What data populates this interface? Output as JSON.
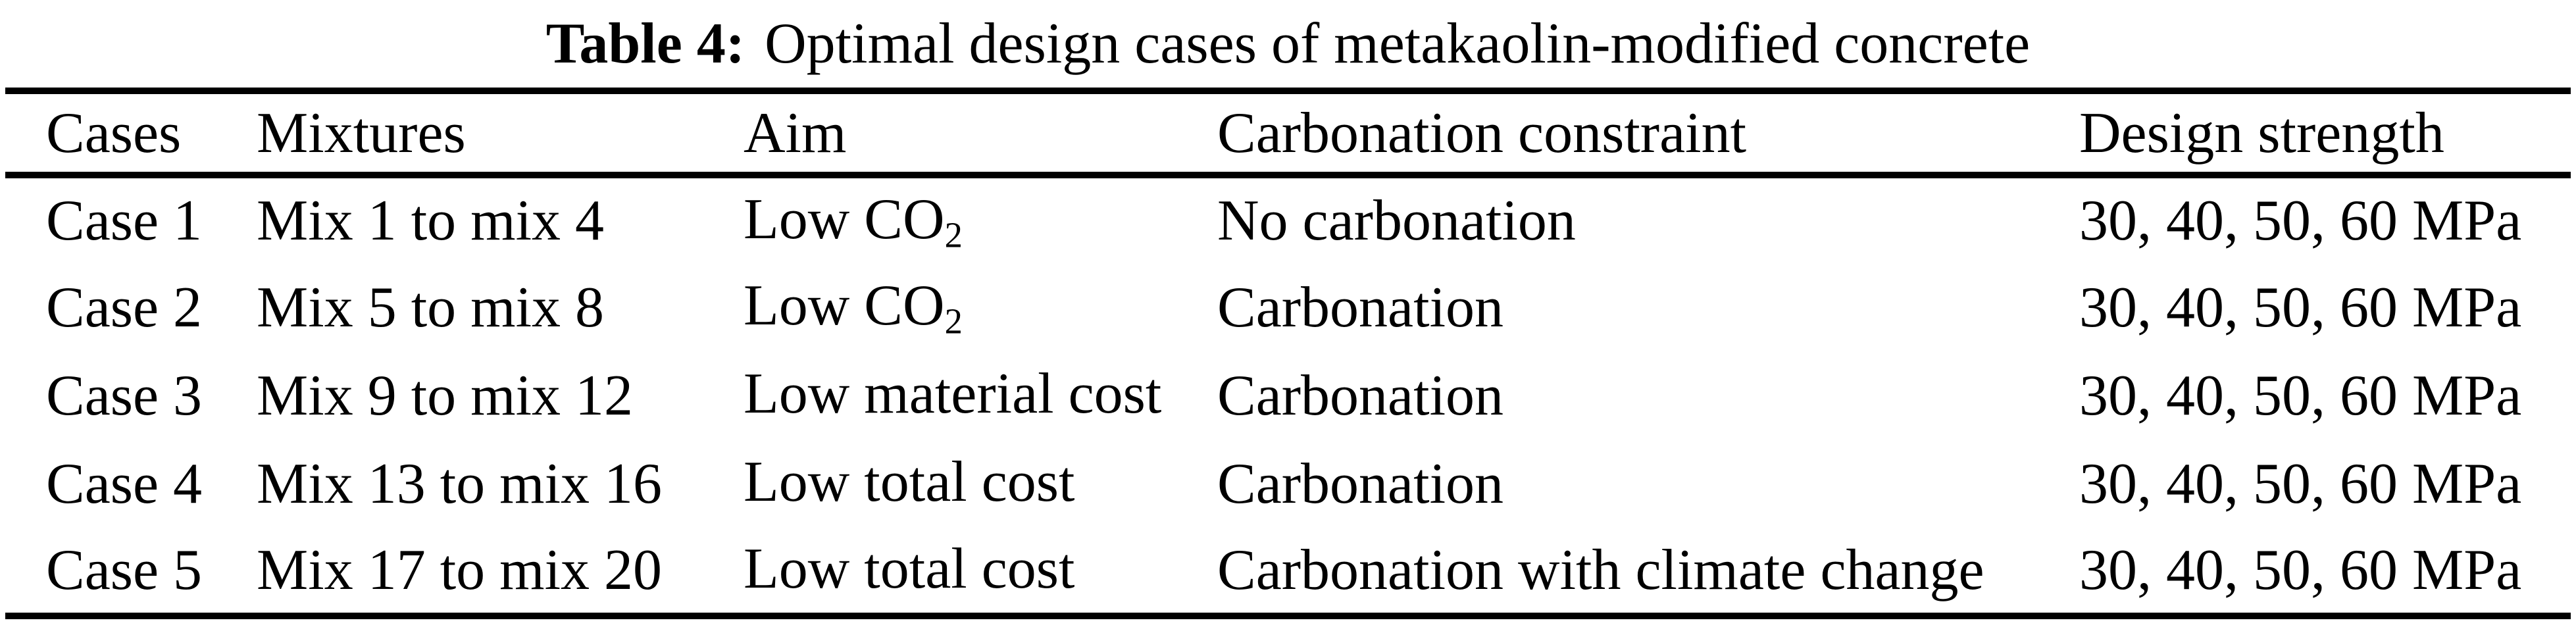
{
  "caption": {
    "label": "Table 4:",
    "text": "Optimal design cases of metakaolin-modified concrete"
  },
  "table": {
    "columns": {
      "cases": "Cases",
      "mixtures": "Mixtures",
      "aim": "Aim",
      "carbonation": "Carbonation constraint",
      "strength": "Design strength"
    },
    "rows": [
      {
        "case": "Case 1",
        "mixtures": "Mix 1 to mix 4",
        "aim": "Low CO",
        "aim_sub": "2",
        "carbonation": "No carbonation",
        "strength": "30, 40, 50, 60 MPa"
      },
      {
        "case": "Case 2",
        "mixtures": "Mix 5 to mix 8",
        "aim": "Low CO",
        "aim_sub": "2",
        "carbonation": "Carbonation",
        "strength": "30, 40, 50, 60 MPa"
      },
      {
        "case": "Case 3",
        "mixtures": "Mix 9 to mix 12",
        "aim": "Low material cost",
        "aim_sub": "",
        "carbonation": "Carbonation",
        "strength": "30, 40, 50, 60 MPa"
      },
      {
        "case": "Case 4",
        "mixtures": "Mix 13 to mix 16",
        "aim": "Low total cost",
        "aim_sub": "",
        "carbonation": "Carbonation",
        "strength": "30, 40, 50, 60 MPa"
      },
      {
        "case": "Case 5",
        "mixtures": "Mix 17 to mix 20",
        "aim": "Low total cost",
        "aim_sub": "",
        "carbonation": "Carbonation with climate change",
        "strength": "30, 40, 50, 60 MPa"
      }
    ]
  },
  "colors": {
    "text": "#000000",
    "background": "#ffffff",
    "rule": "#000000"
  }
}
